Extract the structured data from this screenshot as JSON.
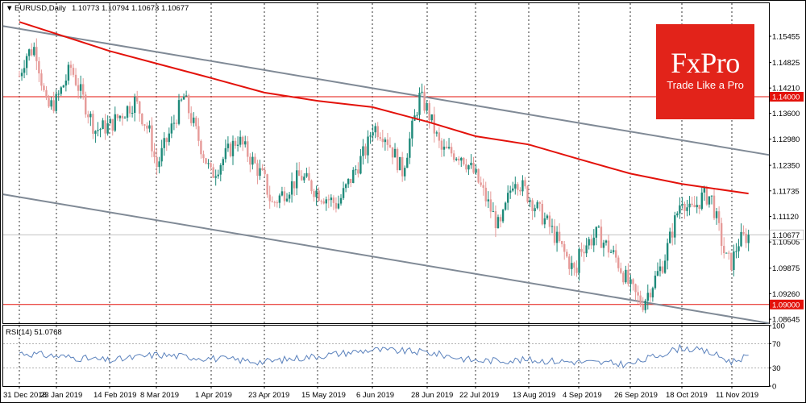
{
  "header": {
    "menu_arrow": "▼",
    "symbol": "EURUSD,Daily",
    "ohlc": "1.10773 1.10794 1.10673 1.10677"
  },
  "logo": {
    "word": "FxPro",
    "tagline": "Trade Like a Pro",
    "bg_color": "#e2231a"
  },
  "colors": {
    "bull": "#1e8a7a",
    "bear": "#e69a98",
    "ma": "#e3120b",
    "channel": "#808a96",
    "level": "#e3120b",
    "rsi": "#5b82bd",
    "grid": "#000000"
  },
  "chart_data": {
    "type": "candlestick",
    "title": "EURUSD,Daily",
    "last_price": "1.10677",
    "price_ticks": [
      "1.15455",
      "1.14825",
      "1.14210",
      "1.13600",
      "1.12980",
      "1.12350",
      "1.11735",
      "1.11120",
      "1.10505",
      "1.09875",
      "1.09260",
      "1.08645"
    ],
    "levels": [
      {
        "value": 1.14,
        "label": "1.14000"
      },
      {
        "value": 1.09,
        "label": "1.09000"
      }
    ],
    "date_labels": [
      "31 Dec 2018",
      "23 Jan 2019",
      "14 Feb 2019",
      "8 Mar 2019",
      "1 Apr 2019",
      "23 Apr 2019",
      "15 May 2019",
      "6 Jun 2019",
      "28 Jun 2019",
      "22 Jul 2019",
      "13 Aug 2019",
      "4 Sep 2019",
      "26 Sep 2019",
      "18 Oct 2019",
      "11 Nov 2019"
    ],
    "y_range": [
      1.0855,
      1.1625
    ],
    "anchors": [
      {
        "label": "31 Dec 2018",
        "close": 1.145
      },
      {
        "label": "4 Jan 2019",
        "close": 1.15
      },
      {
        "label": "10 Jan 2019",
        "close": 1.152
      },
      {
        "label": "17 Jan 2019",
        "close": 1.137
      },
      {
        "label": "23 Jan 2019",
        "close": 1.139
      },
      {
        "label": "29 Jan 2019",
        "close": 1.147
      },
      {
        "label": "8 Feb 2019",
        "close": 1.132
      },
      {
        "label": "14 Feb 2019",
        "close": 1.133
      },
      {
        "label": "26 Feb 2019",
        "close": 1.139
      },
      {
        "label": "5 Mar 2019",
        "close": 1.131
      },
      {
        "label": "8 Mar 2019",
        "close": 1.123
      },
      {
        "label": "20 Mar 2019",
        "close": 1.14
      },
      {
        "label": "1 Apr 2019",
        "close": 1.121
      },
      {
        "label": "12 Apr 2019",
        "close": 1.13
      },
      {
        "label": "23 Apr 2019",
        "close": 1.12
      },
      {
        "label": "26 Apr 2019",
        "close": 1.114
      },
      {
        "label": "8 May 2019",
        "close": 1.121
      },
      {
        "label": "15 May 2019",
        "close": 1.117
      },
      {
        "label": "23 May 2019",
        "close": 1.114
      },
      {
        "label": "4 Jun 2019",
        "close": 1.128
      },
      {
        "label": "6 Jun 2019",
        "close": 1.133
      },
      {
        "label": "11 Jun 2019",
        "close": 1.131
      },
      {
        "label": "18 Jun 2019",
        "close": 1.122
      },
      {
        "label": "25 Jun 2019",
        "close": 1.14
      },
      {
        "label": "28 Jun 2019",
        "close": 1.137
      },
      {
        "label": "5 Jul 2019",
        "close": 1.127
      },
      {
        "label": "15 Jul 2019",
        "close": 1.126
      },
      {
        "label": "22 Jul 2019",
        "close": 1.121
      },
      {
        "label": "1 Aug 2019",
        "close": 1.108
      },
      {
        "label": "7 Aug 2019",
        "close": 1.121
      },
      {
        "label": "13 Aug 2019",
        "close": 1.116
      },
      {
        "label": "23 Aug 2019",
        "close": 1.108
      },
      {
        "label": "3 Sep 2019",
        "close": 1.097
      },
      {
        "label": "4 Sep 2019",
        "close": 1.103
      },
      {
        "label": "12 Sep 2019",
        "close": 1.107
      },
      {
        "label": "20 Sep 2019",
        "close": 1.101
      },
      {
        "label": "26 Sep 2019",
        "close": 1.094
      },
      {
        "label": "1 Oct 2019",
        "close": 1.09
      },
      {
        "label": "10 Oct 2019",
        "close": 1.1
      },
      {
        "label": "18 Oct 2019",
        "close": 1.116
      },
      {
        "label": "22 Oct 2019",
        "close": 1.112
      },
      {
        "label": "28 Oct 2019",
        "close": 1.116
      },
      {
        "label": "1 Nov 2019",
        "close": 1.116
      },
      {
        "label": "8 Nov 2019",
        "close": 1.101
      },
      {
        "label": "11 Nov 2019",
        "close": 1.1
      },
      {
        "label": "14 Nov 2019",
        "close": 1.105
      },
      {
        "label": "19 Nov 2019",
        "close": 1.1068
      }
    ],
    "ma_line": [
      {
        "label": "31 Dec 2018",
        "value": 1.158
      },
      {
        "label": "14 Feb 2019",
        "value": 1.151
      },
      {
        "label": "8 Mar 2019",
        "value": 1.148
      },
      {
        "label": "1 Apr 2019",
        "value": 1.1445
      },
      {
        "label": "23 Apr 2019",
        "value": 1.141
      },
      {
        "label": "15 May 2019",
        "value": 1.139
      },
      {
        "label": "6 Jun 2019",
        "value": 1.1375
      },
      {
        "label": "28 Jun 2019",
        "value": 1.134
      },
      {
        "label": "22 Jul 2019",
        "value": 1.1305
      },
      {
        "label": "13 Aug 2019",
        "value": 1.1285
      },
      {
        "label": "4 Sep 2019",
        "value": 1.125
      },
      {
        "label": "26 Sep 2019",
        "value": 1.1215
      },
      {
        "label": "18 Oct 2019",
        "value": 1.119
      },
      {
        "label": "19 Nov 2019",
        "value": 1.1167
      }
    ],
    "channel_upper": [
      {
        "label": "31 Dec 2018",
        "value": 1.157
      },
      {
        "label": "end",
        "value": 1.126
      }
    ],
    "channel_lower": [
      {
        "label": "31 Dec 2018",
        "value": 1.1165
      },
      {
        "label": "end",
        "value": 1.0855
      }
    ],
    "rsi": {
      "label": "RSI(14) 51.0768",
      "value": 51.0768,
      "range": [
        0,
        100
      ],
      "levels": [
        30,
        70
      ],
      "ticks": [
        "100",
        "70",
        "30",
        "0"
      ],
      "anchors": [
        {
          "label": "31 Dec 2018",
          "value": 55
        },
        {
          "label": "14 Feb 2019",
          "value": 42
        },
        {
          "label": "8 Mar 2019",
          "value": 52
        },
        {
          "label": "23 Apr 2019",
          "value": 40
        },
        {
          "label": "6 Jun 2019",
          "value": 60
        },
        {
          "label": "28 Jun 2019",
          "value": 56
        },
        {
          "label": "22 Jul 2019",
          "value": 42
        },
        {
          "label": "13 Aug 2019",
          "value": 43
        },
        {
          "label": "4 Sep 2019",
          "value": 40
        },
        {
          "label": "26 Sep 2019",
          "value": 36
        },
        {
          "label": "18 Oct 2019",
          "value": 64
        },
        {
          "label": "1 Nov 2019",
          "value": 55
        },
        {
          "label": "11 Nov 2019",
          "value": 40
        },
        {
          "label": "19 Nov 2019",
          "value": 51
        }
      ]
    }
  }
}
